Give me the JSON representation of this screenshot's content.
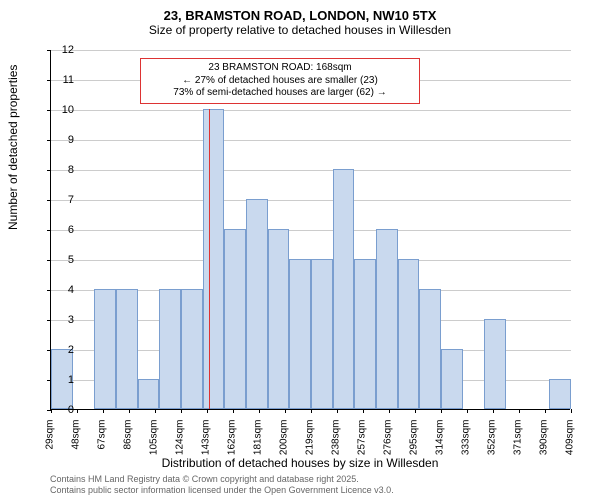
{
  "title": {
    "line1": "23, BRAMSTON ROAD, LONDON, NW10 5TX",
    "line2": "Size of property relative to detached houses in Willesden"
  },
  "chart": {
    "type": "histogram",
    "ylabel": "Number of detached properties",
    "xlabel": "Distribution of detached houses by size in Willesden",
    "ylim": [
      0,
      12
    ],
    "ytick_step": 1,
    "xticks": [
      "29sqm",
      "48sqm",
      "67sqm",
      "86sqm",
      "105sqm",
      "124sqm",
      "143sqm",
      "162sqm",
      "181sqm",
      "200sqm",
      "219sqm",
      "238sqm",
      "257sqm",
      "276sqm",
      "295sqm",
      "314sqm",
      "333sqm",
      "352sqm",
      "371sqm",
      "390sqm",
      "409sqm"
    ],
    "values": [
      2,
      0,
      4,
      4,
      1,
      4,
      4,
      10,
      6,
      7,
      6,
      5,
      5,
      8,
      5,
      6,
      5,
      4,
      2,
      0,
      3,
      0,
      0,
      1
    ],
    "bar_fill_color": "#c9d9ee",
    "bar_border_color": "#7a9ecf",
    "background_color": "#ffffff",
    "grid_color": "#cccccc",
    "marker_value_index": 7.3,
    "marker_color": "#dd3333",
    "axis_color": "#000000",
    "label_fontsize": 12,
    "tick_fontsize": 11
  },
  "annotation": {
    "line1": "23 BRAMSTON ROAD: 168sqm",
    "line2": "← 27% of detached houses are smaller (23)",
    "line3": "73% of semi-detached houses are larger (62) →",
    "border_color": "#dd3333",
    "bg_color": "#ffffff"
  },
  "footer": {
    "line1": "Contains HM Land Registry data © Crown copyright and database right 2025.",
    "line2": "Contains public sector information licensed under the Open Government Licence v3.0."
  }
}
